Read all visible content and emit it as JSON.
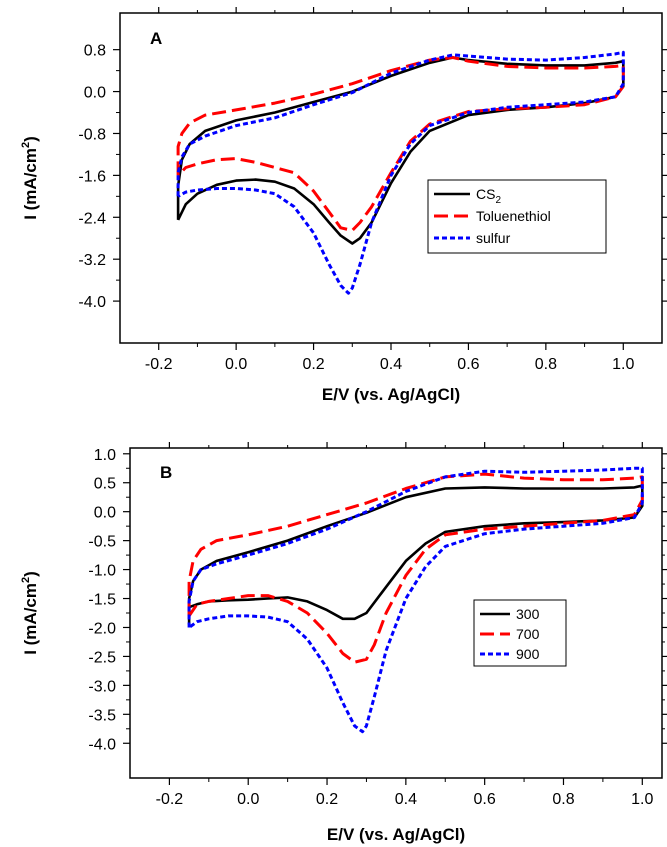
{
  "chart_data": [
    {
      "type": "line",
      "panel_label": "A",
      "xlabel": "E/V (vs. Ag/AgCl)",
      "ylabel_main": "I (mA/cm",
      "ylabel_sup": "2",
      "ylabel_close": ")",
      "xlim": [
        -0.3,
        1.1
      ],
      "ylim": [
        -4.8,
        1.5
      ],
      "xticks": [
        -0.2,
        0.0,
        0.2,
        0.4,
        0.6,
        0.8,
        1.0
      ],
      "xtick_labels": [
        "-0.2",
        "0.0",
        "0.2",
        "0.4",
        "0.6",
        "0.8",
        "1.0"
      ],
      "yticks": [
        0.8,
        0.0,
        -0.8,
        -1.6,
        -2.4,
        -3.2,
        -4.0
      ],
      "ytick_labels": [
        "0.8",
        "0.0",
        "-0.8",
        "-1.6",
        "-2.4",
        "-3.2",
        "-4.0"
      ],
      "legend_position": "center-right",
      "series": [
        {
          "name": "CS",
          "name_sub": "2",
          "color": "#000000",
          "style": "solid",
          "x": [
            -0.15,
            -0.15,
            -0.14,
            -0.12,
            -0.08,
            0.0,
            0.1,
            0.2,
            0.3,
            0.4,
            0.5,
            0.56,
            0.6,
            0.7,
            0.8,
            0.9,
            0.98,
            1.0,
            1.0,
            0.98,
            0.9,
            0.8,
            0.7,
            0.6,
            0.5,
            0.45,
            0.4,
            0.35,
            0.32,
            0.3,
            0.27,
            0.24,
            0.2,
            0.15,
            0.1,
            0.05,
            0.0,
            -0.05,
            -0.1,
            -0.13,
            -0.15
          ],
          "y": [
            -2.45,
            -1.8,
            -1.3,
            -1.0,
            -0.75,
            -0.55,
            -0.4,
            -0.2,
            0.0,
            0.3,
            0.55,
            0.65,
            0.6,
            0.53,
            0.5,
            0.5,
            0.55,
            0.58,
            0.1,
            -0.1,
            -0.22,
            -0.3,
            -0.35,
            -0.45,
            -0.75,
            -1.15,
            -1.75,
            -2.5,
            -2.8,
            -2.9,
            -2.75,
            -2.5,
            -2.15,
            -1.85,
            -1.72,
            -1.68,
            -1.7,
            -1.78,
            -1.95,
            -2.15,
            -2.45
          ]
        },
        {
          "name": "Toluenethiol",
          "color": "#ff0000",
          "style": "dashed",
          "x": [
            -0.15,
            -0.15,
            -0.14,
            -0.12,
            -0.08,
            0.0,
            0.1,
            0.2,
            0.3,
            0.4,
            0.5,
            0.56,
            0.6,
            0.7,
            0.8,
            0.9,
            0.98,
            1.0,
            1.0,
            0.98,
            0.9,
            0.8,
            0.7,
            0.6,
            0.5,
            0.45,
            0.4,
            0.35,
            0.32,
            0.3,
            0.27,
            0.24,
            0.2,
            0.15,
            0.1,
            0.05,
            0.0,
            -0.05,
            -0.1,
            -0.13,
            -0.15
          ],
          "y": [
            -1.6,
            -1.05,
            -0.8,
            -0.6,
            -0.45,
            -0.35,
            -0.22,
            -0.05,
            0.15,
            0.4,
            0.6,
            0.65,
            0.58,
            0.48,
            0.45,
            0.45,
            0.48,
            0.5,
            0.1,
            -0.1,
            -0.25,
            -0.3,
            -0.33,
            -0.38,
            -0.62,
            -0.95,
            -1.55,
            -2.2,
            -2.5,
            -2.65,
            -2.6,
            -2.3,
            -1.9,
            -1.55,
            -1.45,
            -1.35,
            -1.28,
            -1.3,
            -1.38,
            -1.45,
            -1.6
          ]
        },
        {
          "name": "sulfur",
          "color": "#0000ff",
          "style": "dotted",
          "x": [
            -0.15,
            -0.15,
            -0.14,
            -0.12,
            -0.08,
            0.0,
            0.1,
            0.2,
            0.3,
            0.4,
            0.5,
            0.56,
            0.6,
            0.7,
            0.8,
            0.9,
            0.98,
            1.0,
            1.0,
            0.98,
            0.9,
            0.8,
            0.7,
            0.6,
            0.5,
            0.45,
            0.4,
            0.35,
            0.32,
            0.3,
            0.29,
            0.27,
            0.24,
            0.2,
            0.15,
            0.1,
            0.05,
            0.0,
            -0.05,
            -0.1,
            -0.13,
            -0.15
          ],
          "y": [
            -2.0,
            -1.55,
            -1.25,
            -1.0,
            -0.85,
            -0.65,
            -0.5,
            -0.25,
            -0.02,
            0.35,
            0.6,
            0.7,
            0.68,
            0.62,
            0.6,
            0.65,
            0.72,
            0.75,
            0.15,
            -0.1,
            -0.2,
            -0.25,
            -0.3,
            -0.4,
            -0.65,
            -1.0,
            -1.6,
            -2.5,
            -3.3,
            -3.75,
            -3.85,
            -3.7,
            -3.3,
            -2.7,
            -2.2,
            -1.95,
            -1.88,
            -1.85,
            -1.85,
            -1.88,
            -1.92,
            -2.0
          ]
        }
      ]
    },
    {
      "type": "line",
      "panel_label": "B",
      "xlabel": "E/V (vs. Ag/AgCl)",
      "ylabel_main": "I (mA/cm",
      "ylabel_sup": "2",
      "ylabel_close": ")",
      "xlim": [
        -0.3,
        1.05
      ],
      "ylim": [
        -4.6,
        1.1
      ],
      "xticks": [
        -0.2,
        0.0,
        0.2,
        0.4,
        0.6,
        0.8,
        1.0
      ],
      "xtick_labels": [
        "-0.2",
        "0.0",
        "0.2",
        "0.4",
        "0.6",
        "0.8",
        "1.0"
      ],
      "yticks": [
        1.0,
        0.5,
        0.0,
        -0.5,
        -1.0,
        -1.5,
        -2.0,
        -2.5,
        -3.0,
        -3.5,
        -4.0
      ],
      "ytick_labels": [
        "1.0",
        "0.5",
        "0.0",
        "-0.5",
        "-1.0",
        "-1.5",
        "-2.0",
        "-2.5",
        "-3.0",
        "-3.5",
        "-4.0"
      ],
      "legend_position": "center-right",
      "series": [
        {
          "name": "300",
          "color": "#000000",
          "style": "solid",
          "x": [
            -0.15,
            -0.15,
            -0.14,
            -0.12,
            -0.08,
            0.0,
            0.1,
            0.2,
            0.3,
            0.4,
            0.5,
            0.6,
            0.7,
            0.8,
            0.9,
            0.98,
            1.0,
            1.0,
            0.98,
            0.9,
            0.8,
            0.7,
            0.6,
            0.5,
            0.45,
            0.4,
            0.35,
            0.3,
            0.27,
            0.24,
            0.2,
            0.15,
            0.1,
            0.05,
            0.0,
            -0.05,
            -0.1,
            -0.13,
            -0.15
          ],
          "y": [
            -1.95,
            -1.5,
            -1.2,
            -1.0,
            -0.85,
            -0.7,
            -0.5,
            -0.25,
            -0.02,
            0.25,
            0.4,
            0.42,
            0.4,
            0.4,
            0.4,
            0.42,
            0.45,
            0.1,
            -0.1,
            -0.15,
            -0.18,
            -0.2,
            -0.25,
            -0.35,
            -0.55,
            -0.85,
            -1.3,
            -1.75,
            -1.85,
            -1.85,
            -1.7,
            -1.55,
            -1.48,
            -1.5,
            -1.52,
            -1.53,
            -1.55,
            -1.6,
            -1.65
          ]
        },
        {
          "name": "700",
          "color": "#ff0000",
          "style": "dashed",
          "x": [
            -0.15,
            -0.15,
            -0.14,
            -0.12,
            -0.08,
            0.0,
            0.1,
            0.2,
            0.3,
            0.4,
            0.5,
            0.6,
            0.7,
            0.8,
            0.9,
            0.98,
            1.0,
            1.0,
            0.98,
            0.9,
            0.8,
            0.7,
            0.6,
            0.5,
            0.45,
            0.4,
            0.35,
            0.32,
            0.3,
            0.27,
            0.24,
            0.2,
            0.15,
            0.1,
            0.05,
            0.0,
            -0.05,
            -0.1,
            -0.13,
            -0.15
          ],
          "y": [
            -1.8,
            -1.2,
            -0.85,
            -0.65,
            -0.5,
            -0.4,
            -0.25,
            -0.05,
            0.15,
            0.4,
            0.6,
            0.65,
            0.58,
            0.55,
            0.55,
            0.58,
            0.6,
            0.2,
            -0.05,
            -0.15,
            -0.2,
            -0.25,
            -0.3,
            -0.4,
            -0.65,
            -1.1,
            -1.75,
            -2.3,
            -2.55,
            -2.6,
            -2.45,
            -2.1,
            -1.75,
            -1.55,
            -1.45,
            -1.45,
            -1.5,
            -1.55,
            -1.6,
            -1.8
          ]
        },
        {
          "name": "900",
          "color": "#0000ff",
          "style": "dotted",
          "x": [
            -0.15,
            -0.15,
            -0.14,
            -0.12,
            -0.08,
            0.0,
            0.1,
            0.2,
            0.3,
            0.4,
            0.5,
            0.6,
            0.7,
            0.8,
            0.9,
            0.98,
            1.0,
            1.0,
            0.98,
            0.9,
            0.8,
            0.7,
            0.6,
            0.5,
            0.45,
            0.4,
            0.35,
            0.32,
            0.3,
            0.29,
            0.27,
            0.24,
            0.2,
            0.15,
            0.1,
            0.05,
            0.0,
            -0.05,
            -0.1,
            -0.13,
            -0.15
          ],
          "y": [
            -2.0,
            -1.55,
            -1.2,
            -1.0,
            -0.9,
            -0.75,
            -0.55,
            -0.3,
            0.0,
            0.35,
            0.6,
            0.7,
            0.68,
            0.7,
            0.72,
            0.75,
            0.75,
            0.15,
            -0.1,
            -0.2,
            -0.25,
            -0.3,
            -0.38,
            -0.6,
            -0.95,
            -1.5,
            -2.4,
            -3.2,
            -3.7,
            -3.8,
            -3.7,
            -3.3,
            -2.7,
            -2.2,
            -1.9,
            -1.82,
            -1.8,
            -1.8,
            -1.85,
            -1.9,
            -2.0
          ]
        }
      ]
    }
  ]
}
